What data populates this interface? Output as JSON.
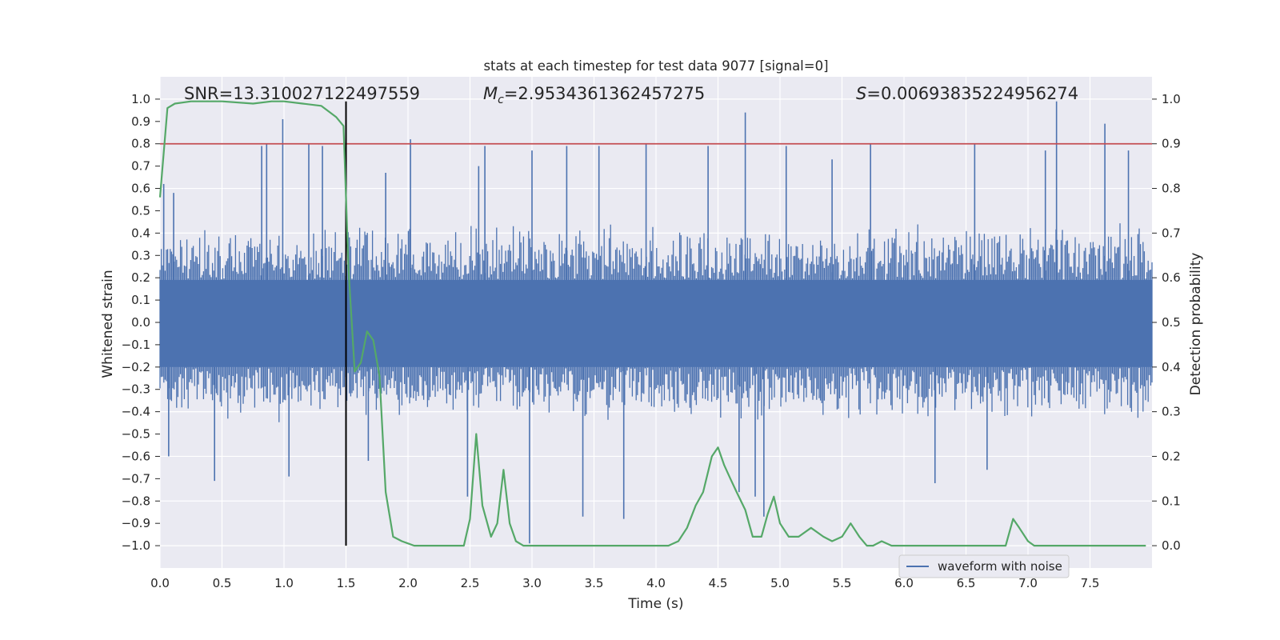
{
  "chart_data": {
    "type": "line",
    "title": "stats at each timestep for test data 9077 [signal=0]",
    "xlabel": "Time (s)",
    "ylabel": "Whitened strain",
    "y2label": "Detection probability",
    "xlim": [
      0.0,
      8.0
    ],
    "ylim": [
      -1.1,
      1.1
    ],
    "y2lim": [
      -0.05,
      1.05
    ],
    "xticks": [
      "0.0",
      "0.5",
      "1.0",
      "1.5",
      "2.0",
      "2.5",
      "3.0",
      "3.5",
      "4.0",
      "4.5",
      "5.0",
      "5.5",
      "6.0",
      "6.5",
      "7.0",
      "7.5"
    ],
    "yticks": [
      "1.0",
      "0.9",
      "0.8",
      "0.7",
      "0.6",
      "0.5",
      "0.4",
      "0.3",
      "0.2",
      "0.1",
      "0.0",
      "−0.1",
      "−0.2",
      "−0.3",
      "−0.4",
      "−0.5",
      "−0.6",
      "−0.7",
      "−0.8",
      "−0.9",
      "−1.0"
    ],
    "y2ticks": [
      "1.0",
      "0.9",
      "0.8",
      "0.7",
      "0.6",
      "0.5",
      "0.4",
      "0.3",
      "0.2",
      "0.1",
      "0.0"
    ],
    "annotations": {
      "snr": "SNR=13.310027122497559",
      "mc_symbol": "M",
      "mc_sub": "c",
      "mc_value": "=2.9534361362457275",
      "s_symbol": "S",
      "s_value": "=0.00693835224956274"
    },
    "legend": {
      "label": "waveform with noise",
      "location": "lower-right"
    },
    "colors": {
      "waveform": "#4c72b0",
      "probability": "#55a868",
      "threshold": "#c44e52",
      "marker": "#000000",
      "plot_bg": "#eaeaf2",
      "grid": "#ffffff"
    },
    "threshold_probability": 0.9,
    "marker_time": 1.5,
    "waveform_envelope": {
      "description_note": "noisy strain; typical amplitude band",
      "core_upper": 0.19,
      "core_lower": -0.2,
      "typical_upper": 0.42,
      "typical_lower": -0.42,
      "spikes": [
        [
          0.03,
          0.62
        ],
        [
          0.07,
          -0.6
        ],
        [
          0.11,
          0.58
        ],
        [
          0.44,
          -0.71
        ],
        [
          0.82,
          0.79
        ],
        [
          0.86,
          0.8
        ],
        [
          0.99,
          0.91
        ],
        [
          1.04,
          -0.69
        ],
        [
          1.2,
          0.8
        ],
        [
          1.31,
          0.79
        ],
        [
          1.68,
          -0.62
        ],
        [
          1.82,
          0.67
        ],
        [
          2.02,
          0.82
        ],
        [
          2.48,
          -0.78
        ],
        [
          2.57,
          0.7
        ],
        [
          2.62,
          0.79
        ],
        [
          2.98,
          -0.99
        ],
        [
          3.0,
          0.77
        ],
        [
          3.28,
          0.79
        ],
        [
          3.41,
          -0.87
        ],
        [
          3.54,
          0.79
        ],
        [
          3.74,
          -0.88
        ],
        [
          3.92,
          0.8
        ],
        [
          4.42,
          0.79
        ],
        [
          4.67,
          -0.76
        ],
        [
          4.72,
          0.94
        ],
        [
          4.8,
          -0.78
        ],
        [
          4.87,
          -0.87
        ],
        [
          5.05,
          0.79
        ],
        [
          5.42,
          0.73
        ],
        [
          5.73,
          0.8
        ],
        [
          6.25,
          -0.72
        ],
        [
          6.57,
          0.8
        ],
        [
          6.67,
          -0.66
        ],
        [
          7.14,
          0.77
        ],
        [
          7.23,
          0.99
        ],
        [
          7.62,
          0.89
        ],
        [
          7.81,
          0.77
        ]
      ]
    },
    "probability_series": {
      "x": [
        0.0,
        0.06,
        0.12,
        0.25,
        0.5,
        0.75,
        0.9,
        1.0,
        1.15,
        1.3,
        1.42,
        1.48,
        1.52,
        1.57,
        1.62,
        1.67,
        1.72,
        1.77,
        1.82,
        1.88,
        1.95,
        2.05,
        2.2,
        2.35,
        2.45,
        2.5,
        2.55,
        2.6,
        2.67,
        2.72,
        2.77,
        2.82,
        2.87,
        2.93,
        3.0,
        3.2,
        3.5,
        3.8,
        4.0,
        4.1,
        4.18,
        4.25,
        4.32,
        4.38,
        4.45,
        4.5,
        4.55,
        4.6,
        4.65,
        4.72,
        4.78,
        4.85,
        4.9,
        4.95,
        5.0,
        5.07,
        5.15,
        5.25,
        5.35,
        5.42,
        5.5,
        5.57,
        5.64,
        5.7,
        5.75,
        5.82,
        5.9,
        6.0,
        6.2,
        6.4,
        6.6,
        6.82,
        6.88,
        6.93,
        7.0,
        7.05,
        7.2,
        7.4,
        7.6,
        7.8,
        7.95
      ],
      "y": [
        0.78,
        0.98,
        0.99,
        0.995,
        0.995,
        0.99,
        0.995,
        0.995,
        0.99,
        0.985,
        0.96,
        0.94,
        0.62,
        0.39,
        0.41,
        0.48,
        0.46,
        0.38,
        0.12,
        0.02,
        0.01,
        0.0,
        0.0,
        0.0,
        0.0,
        0.06,
        0.25,
        0.09,
        0.02,
        0.05,
        0.17,
        0.05,
        0.01,
        0.0,
        0.0,
        0.0,
        0.0,
        0.0,
        0.0,
        0.0,
        0.01,
        0.04,
        0.09,
        0.12,
        0.2,
        0.22,
        0.18,
        0.15,
        0.12,
        0.08,
        0.02,
        0.02,
        0.07,
        0.11,
        0.05,
        0.02,
        0.02,
        0.04,
        0.02,
        0.01,
        0.02,
        0.05,
        0.02,
        0.0,
        0.0,
        0.01,
        0.0,
        0.0,
        0.0,
        0.0,
        0.0,
        0.0,
        0.06,
        0.04,
        0.01,
        0.0,
        0.0,
        0.0,
        0.0,
        0.0,
        0.0
      ]
    }
  }
}
